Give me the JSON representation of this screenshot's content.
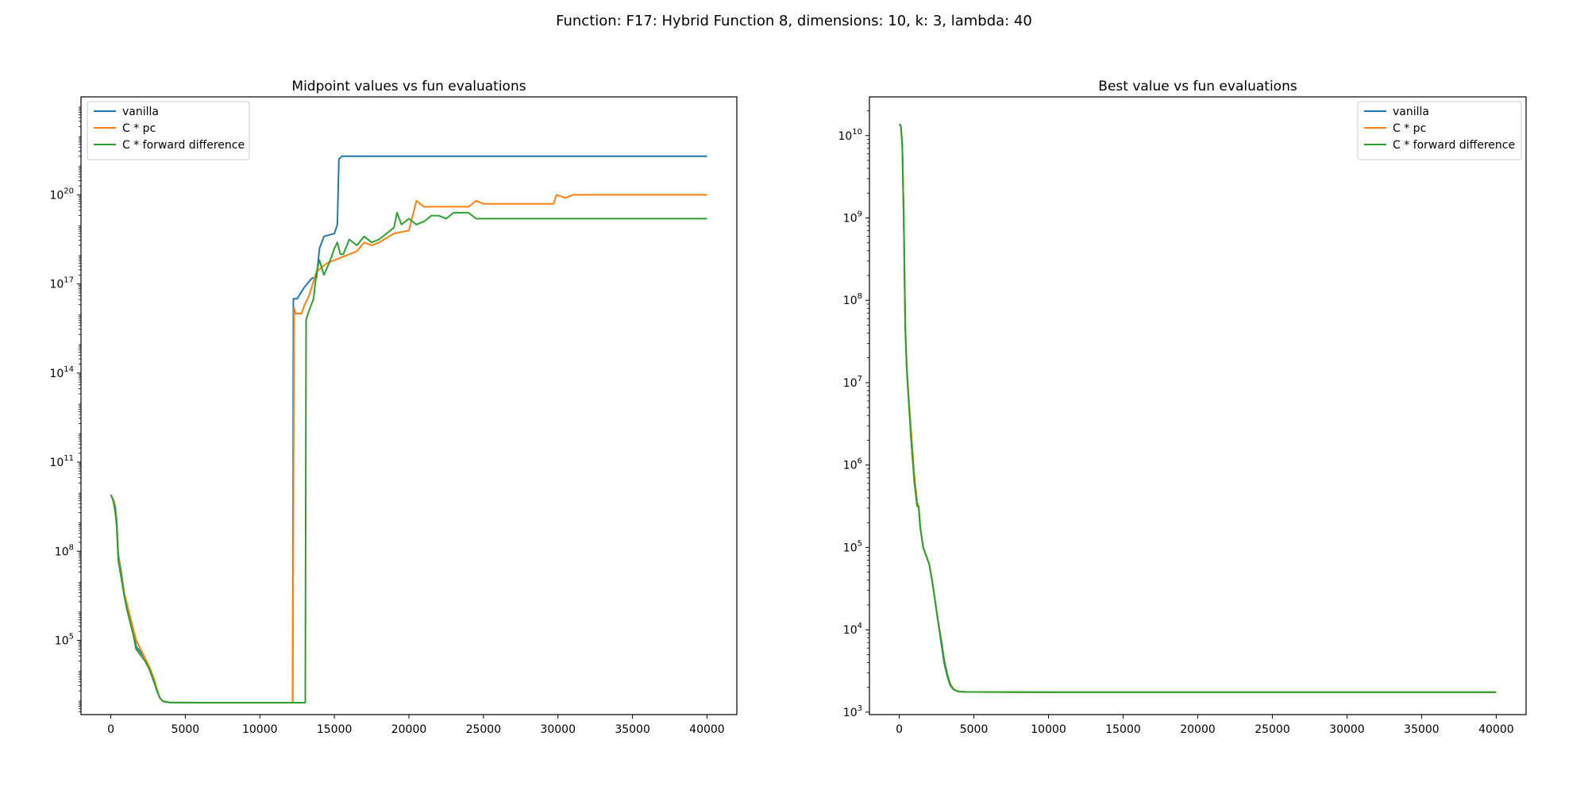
{
  "suptitle": "Function: F17: Hybrid Function 8, dimensions: 10, k: 3, lambda: 40",
  "chart_data": [
    {
      "type": "line",
      "title": "Midpoint values vs fun evaluations",
      "xlabel": "",
      "ylabel": "",
      "yscale": "log",
      "xlim": [
        -2000,
        42000
      ],
      "ylim_log10": [
        2.5,
        23.3
      ],
      "x_ticks": [
        {
          "value": 0,
          "label": "0"
        },
        {
          "value": 5000,
          "label": "5000"
        },
        {
          "value": 10000,
          "label": "10000"
        },
        {
          "value": 15000,
          "label": "15000"
        },
        {
          "value": 20000,
          "label": "20000"
        },
        {
          "value": 25000,
          "label": "25000"
        },
        {
          "value": 30000,
          "label": "30000"
        },
        {
          "value": 35000,
          "label": "35000"
        },
        {
          "value": 40000,
          "label": "40000"
        }
      ],
      "y_ticks": [
        {
          "exp": 5,
          "base": "10",
          "sup": "5"
        },
        {
          "exp": 8,
          "base": "10",
          "sup": "8"
        },
        {
          "exp": 11,
          "base": "10",
          "sup": "11"
        },
        {
          "exp": 14,
          "base": "10",
          "sup": "14"
        },
        {
          "exp": 17,
          "base": "10",
          "sup": "17"
        },
        {
          "exp": 20,
          "base": "10",
          "sup": "20"
        }
      ],
      "legend_position": "upper-left",
      "grid": false,
      "series": [
        {
          "name": "vanilla",
          "color": "#1f77b4",
          "x": [
            0,
            100,
            200,
            300,
            400,
            500,
            700,
            900,
            1100,
            1300,
            1500,
            1700,
            2000,
            2300,
            2600,
            2900,
            3100,
            3300,
            3500,
            3700,
            4000,
            6000,
            8000,
            10000,
            12200,
            12250,
            12500,
            13000,
            13500,
            13800,
            14000,
            14300,
            15000,
            15200,
            15300,
            15500,
            16000,
            20000,
            30000,
            40000
          ],
          "log10y": [
            9.9,
            9.8,
            9.7,
            9.5,
            9.0,
            7.9,
            7.3,
            6.6,
            6.1,
            5.7,
            5.3,
            4.8,
            4.6,
            4.4,
            4.0,
            3.6,
            3.3,
            3.05,
            2.95,
            2.92,
            2.91,
            2.9,
            2.9,
            2.9,
            2.9,
            16.5,
            16.5,
            16.9,
            17.2,
            17.2,
            18.2,
            18.6,
            18.7,
            19.0,
            21.2,
            21.3,
            21.3,
            21.3,
            21.3,
            21.3
          ]
        },
        {
          "name": "C * pc",
          "color": "#ff7f0e",
          "x": [
            0,
            100,
            200,
            300,
            400,
            500,
            700,
            900,
            1100,
            1300,
            1500,
            1700,
            2000,
            2300,
            2600,
            2900,
            3100,
            3300,
            3500,
            4000,
            6000,
            8000,
            10000,
            12200,
            12300,
            12400,
            12800,
            13000,
            13300,
            13600,
            13800,
            14000,
            14500,
            15000,
            16000,
            16500,
            17000,
            17500,
            18000,
            19000,
            20000,
            20500,
            21000,
            21500,
            22000,
            22500,
            24000,
            24500,
            25000,
            26000,
            27000,
            29700,
            29900,
            30500,
            31000,
            32000,
            35000,
            40000
          ],
          "log10y": [
            9.9,
            9.8,
            9.7,
            9.4,
            8.9,
            7.8,
            7.2,
            6.6,
            6.2,
            5.8,
            5.4,
            5.0,
            4.7,
            4.4,
            4.1,
            3.7,
            3.35,
            3.05,
            2.95,
            2.91,
            2.9,
            2.9,
            2.9,
            2.9,
            16.2,
            16.0,
            16.0,
            16.3,
            16.6,
            17.1,
            17.4,
            17.5,
            17.7,
            17.8,
            18.0,
            18.1,
            18.4,
            18.3,
            18.4,
            18.7,
            18.8,
            19.8,
            19.6,
            19.6,
            19.6,
            19.6,
            19.6,
            19.8,
            19.7,
            19.7,
            19.7,
            19.7,
            20.0,
            19.9,
            20.0,
            20.0,
            20.0,
            20.0
          ]
        },
        {
          "name": "C * forward difference",
          "color": "#2ca02c",
          "x": [
            0,
            100,
            200,
            300,
            400,
            500,
            700,
            900,
            1100,
            1300,
            1500,
            1700,
            2000,
            2300,
            2600,
            2900,
            3100,
            3300,
            3500,
            4000,
            6000,
            8000,
            10000,
            12000,
            13050,
            13100,
            13300,
            13600,
            13800,
            14000,
            14300,
            14800,
            15000,
            15200,
            15400,
            15600,
            16000,
            16500,
            17000,
            17500,
            18000,
            18500,
            19000,
            19200,
            19500,
            20000,
            20500,
            21000,
            21500,
            22000,
            22500,
            23000,
            24000,
            24500,
            25000,
            30000,
            35000,
            40000
          ],
          "log10y": [
            9.9,
            9.8,
            9.6,
            9.3,
            8.8,
            7.7,
            7.1,
            6.5,
            6.0,
            5.6,
            5.2,
            4.7,
            4.5,
            4.3,
            4.0,
            3.6,
            3.3,
            3.05,
            2.95,
            2.91,
            2.9,
            2.9,
            2.9,
            2.9,
            2.9,
            15.8,
            16.1,
            16.5,
            17.4,
            17.8,
            17.3,
            17.9,
            18.2,
            18.4,
            18.0,
            18.0,
            18.5,
            18.3,
            18.6,
            18.4,
            18.5,
            18.7,
            18.9,
            19.4,
            19.0,
            19.2,
            19.0,
            19.1,
            19.3,
            19.3,
            19.2,
            19.4,
            19.4,
            19.2,
            19.2,
            19.2,
            19.2,
            19.2
          ]
        }
      ]
    },
    {
      "type": "line",
      "title": "Best value vs fun evaluations",
      "xlabel": "",
      "ylabel": "",
      "yscale": "log",
      "xlim": [
        -2000,
        42000
      ],
      "ylim_log10": [
        2.97,
        10.47
      ],
      "x_ticks": [
        {
          "value": 0,
          "label": "0"
        },
        {
          "value": 5000,
          "label": "5000"
        },
        {
          "value": 10000,
          "label": "10000"
        },
        {
          "value": 15000,
          "label": "15000"
        },
        {
          "value": 20000,
          "label": "20000"
        },
        {
          "value": 25000,
          "label": "25000"
        },
        {
          "value": 30000,
          "label": "30000"
        },
        {
          "value": 35000,
          "label": "35000"
        },
        {
          "value": 40000,
          "label": "40000"
        }
      ],
      "y_ticks": [
        {
          "exp": 3,
          "base": "10",
          "sup": "3"
        },
        {
          "exp": 4,
          "base": "10",
          "sup": "4"
        },
        {
          "exp": 5,
          "base": "10",
          "sup": "5"
        },
        {
          "exp": 6,
          "base": "10",
          "sup": "6"
        },
        {
          "exp": 7,
          "base": "10",
          "sup": "7"
        },
        {
          "exp": 8,
          "base": "10",
          "sup": "8"
        },
        {
          "exp": 9,
          "base": "10",
          "sup": "9"
        },
        {
          "exp": 10,
          "base": "10",
          "sup": "10"
        }
      ],
      "legend_position": "upper-right",
      "grid": false,
      "series": [
        {
          "name": "vanilla",
          "color": "#1f77b4",
          "x": [
            0,
            100,
            200,
            300,
            400,
            500,
            600,
            800,
            1000,
            1200,
            1300,
            1400,
            1600,
            1800,
            2000,
            2200,
            2400,
            2600,
            2800,
            3000,
            3200,
            3400,
            3600,
            3800,
            4000,
            4500,
            5000,
            10000,
            20000,
            30000,
            40000
          ],
          "log10y": [
            10.14,
            10.12,
            9.9,
            9.0,
            7.7,
            7.2,
            6.9,
            6.3,
            5.85,
            5.5,
            5.5,
            5.25,
            5.0,
            4.9,
            4.8,
            4.6,
            4.35,
            4.1,
            3.85,
            3.6,
            3.45,
            3.33,
            3.28,
            3.26,
            3.25,
            3.245,
            3.245,
            3.243,
            3.243,
            3.243,
            3.243
          ]
        },
        {
          "name": "C * pc",
          "color": "#ff7f0e",
          "x": [
            0,
            100,
            200,
            300,
            400,
            500,
            600,
            800,
            1000,
            1200,
            1300,
            1400,
            1600,
            1800,
            2000,
            2200,
            2400,
            2600,
            2800,
            3000,
            3200,
            3400,
            3600,
            3800,
            4000,
            4500,
            5000,
            10000,
            20000,
            30000,
            40000
          ],
          "log10y": [
            10.14,
            10.12,
            9.9,
            9.0,
            7.7,
            7.2,
            6.9,
            6.4,
            5.9,
            5.55,
            5.5,
            5.25,
            5.0,
            4.9,
            4.8,
            4.6,
            4.35,
            4.1,
            3.9,
            3.65,
            3.48,
            3.35,
            3.29,
            3.26,
            3.25,
            3.245,
            3.245,
            3.243,
            3.243,
            3.243,
            3.243
          ]
        },
        {
          "name": "C * forward difference",
          "color": "#2ca02c",
          "x": [
            0,
            100,
            200,
            300,
            400,
            500,
            600,
            800,
            1000,
            1200,
            1300,
            1400,
            1600,
            1800,
            2000,
            2200,
            2400,
            2600,
            2800,
            3000,
            3200,
            3400,
            3600,
            3800,
            4000,
            4500,
            5000,
            10000,
            20000,
            30000,
            40000
          ],
          "log10y": [
            10.14,
            10.12,
            9.9,
            9.0,
            7.65,
            7.15,
            6.85,
            6.3,
            5.8,
            5.5,
            5.5,
            5.25,
            5.0,
            4.9,
            4.8,
            4.6,
            4.35,
            4.1,
            3.88,
            3.63,
            3.47,
            3.34,
            3.28,
            3.26,
            3.25,
            3.245,
            3.245,
            3.243,
            3.243,
            3.243,
            3.243
          ]
        }
      ]
    }
  ]
}
